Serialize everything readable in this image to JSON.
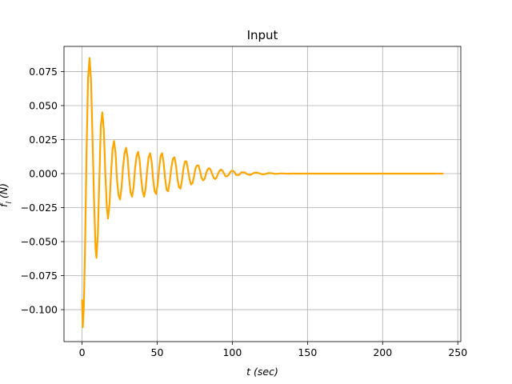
{
  "chart_data": {
    "type": "line",
    "title": "Input",
    "xlabel": "t (sec)",
    "ylabel": "f_l (N)",
    "xlim": [
      -12,
      252
    ],
    "ylim": [
      -0.1235,
      0.0935
    ],
    "xticks": [
      0,
      50,
      100,
      150,
      200,
      250
    ],
    "xtick_labels": [
      "0",
      "50",
      "100",
      "150",
      "200",
      "250"
    ],
    "yticks": [
      -0.1,
      -0.075,
      -0.05,
      -0.025,
      0.0,
      0.025,
      0.05,
      0.075
    ],
    "ytick_labels": [
      "−0.100",
      "−0.075",
      "−0.050",
      "−0.025",
      "0.000",
      "0.025",
      "0.050",
      "0.075"
    ],
    "grid": true,
    "legend": "none",
    "series": [
      {
        "color": "#ffa500",
        "points": [
          [
            0.0,
            -0.093
          ],
          [
            0.5,
            -0.113
          ],
          [
            1.2,
            -0.097
          ],
          [
            2.0,
            -0.055
          ],
          [
            3.0,
            0.015
          ],
          [
            4.0,
            0.07
          ],
          [
            5.0,
            0.085
          ],
          [
            6.0,
            0.068
          ],
          [
            7.0,
            0.025
          ],
          [
            8.0,
            -0.02
          ],
          [
            9.0,
            -0.055
          ],
          [
            9.6,
            -0.062
          ],
          [
            10.5,
            -0.045
          ],
          [
            11.5,
            -0.005
          ],
          [
            12.5,
            0.035
          ],
          [
            13.5,
            0.045
          ],
          [
            14.5,
            0.032
          ],
          [
            15.5,
            0.0
          ],
          [
            16.5,
            -0.025
          ],
          [
            17.3,
            -0.033
          ],
          [
            18.3,
            -0.022
          ],
          [
            19.3,
            0.0
          ],
          [
            20.3,
            0.018
          ],
          [
            21.3,
            0.024
          ],
          [
            22.3,
            0.015
          ],
          [
            23.3,
            -0.005
          ],
          [
            24.3,
            -0.016
          ],
          [
            25.3,
            -0.019
          ],
          [
            26.3,
            -0.01
          ],
          [
            27.3,
            0.005
          ],
          [
            28.3,
            0.015
          ],
          [
            29.3,
            0.019
          ],
          [
            30.3,
            0.012
          ],
          [
            31.3,
            -0.003
          ],
          [
            32.3,
            -0.014
          ],
          [
            33.3,
            -0.017
          ],
          [
            34.3,
            -0.01
          ],
          [
            35.3,
            0.004
          ],
          [
            36.3,
            0.013
          ],
          [
            37.3,
            0.016
          ],
          [
            38.3,
            0.01
          ],
          [
            39.3,
            -0.003
          ],
          [
            40.3,
            -0.013
          ],
          [
            41.3,
            -0.017
          ],
          [
            42.3,
            -0.011
          ],
          [
            43.3,
            0.002
          ],
          [
            44.3,
            0.012
          ],
          [
            45.3,
            0.015
          ],
          [
            46.3,
            0.009
          ],
          [
            47.3,
            -0.004
          ],
          [
            48.3,
            -0.013
          ],
          [
            49.3,
            -0.015
          ],
          [
            50.3,
            -0.008
          ],
          [
            51.3,
            0.004
          ],
          [
            52.3,
            0.013
          ],
          [
            53.3,
            0.015
          ],
          [
            54.3,
            0.008
          ],
          [
            55.3,
            -0.004
          ],
          [
            56.3,
            -0.012
          ],
          [
            57.3,
            -0.013
          ],
          [
            58.3,
            -0.006
          ],
          [
            59.5,
            0.005
          ],
          [
            60.5,
            0.011
          ],
          [
            61.5,
            0.012
          ],
          [
            62.5,
            0.006
          ],
          [
            63.5,
            -0.004
          ],
          [
            64.5,
            -0.01
          ],
          [
            65.5,
            -0.011
          ],
          [
            66.5,
            -0.005
          ],
          [
            67.5,
            0.004
          ],
          [
            68.5,
            0.009
          ],
          [
            69.5,
            0.009
          ],
          [
            70.5,
            0.003
          ],
          [
            71.5,
            -0.004
          ],
          [
            72.5,
            -0.008
          ],
          [
            73.5,
            -0.007
          ],
          [
            74.5,
            -0.002
          ],
          [
            75.5,
            0.004
          ],
          [
            76.5,
            0.006
          ],
          [
            77.5,
            0.006
          ],
          [
            78.5,
            0.002
          ],
          [
            79.5,
            -0.003
          ],
          [
            80.5,
            -0.005
          ],
          [
            81.5,
            -0.004
          ],
          [
            82.5,
            0.0
          ],
          [
            83.5,
            0.003
          ],
          [
            84.5,
            0.004
          ],
          [
            85.5,
            0.003
          ],
          [
            86.5,
            0.0
          ],
          [
            87.5,
            -0.003
          ],
          [
            88.5,
            -0.004
          ],
          [
            89.5,
            -0.003
          ],
          [
            90.5,
            0.0
          ],
          [
            91.5,
            0.002
          ],
          [
            92.5,
            0.003
          ],
          [
            93.5,
            0.002
          ],
          [
            94.5,
            0.0
          ],
          [
            95.5,
            -0.002
          ],
          [
            96.5,
            -0.002
          ],
          [
            97.5,
            -0.001
          ],
          [
            98.5,
            0.001
          ],
          [
            99.5,
            0.002
          ],
          [
            100.5,
            0.002
          ],
          [
            101.5,
            0.001
          ],
          [
            102.5,
            -0.001
          ],
          [
            103.5,
            -0.001
          ],
          [
            104.5,
            -0.001
          ],
          [
            106,
            0.001
          ],
          [
            108,
            0.001
          ],
          [
            110,
            -0.0005
          ],
          [
            112,
            -0.001
          ],
          [
            114,
            0.0003
          ],
          [
            116,
            0.0008
          ],
          [
            118,
            0.0002
          ],
          [
            120,
            -0.0006
          ],
          [
            122,
            -0.0003
          ],
          [
            124,
            0.0004
          ],
          [
            126,
            0.0003
          ],
          [
            128,
            -0.0002
          ],
          [
            130,
            -0.0002
          ],
          [
            132,
            0.0001
          ],
          [
            134,
            0.0001
          ],
          [
            136,
            -0.0001
          ],
          [
            140,
            0.0
          ],
          [
            160,
            0.0
          ],
          [
            180,
            0.0
          ],
          [
            200,
            0.0
          ],
          [
            220,
            0.0
          ],
          [
            240,
            0.0
          ]
        ]
      }
    ]
  }
}
